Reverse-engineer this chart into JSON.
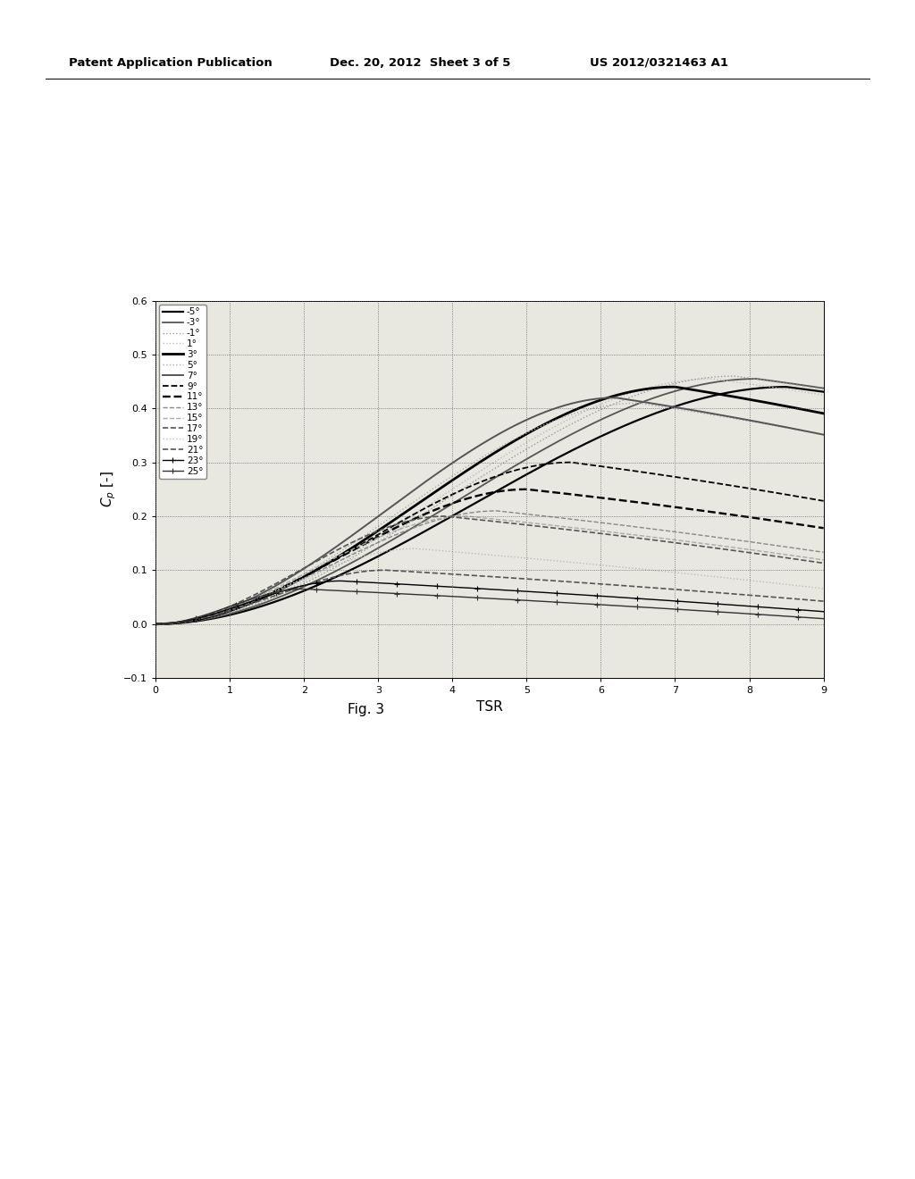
{
  "header_left": "Patent Application Publication",
  "header_mid": "Dec. 20, 2012  Sheet 3 of 5",
  "header_right": "US 2012/0321463 A1",
  "fig_label": "Fig. 3",
  "xlabel": "TSR",
  "ylabel": "C_p [-]",
  "xlim": [
    0,
    9
  ],
  "ylim": [
    -0.1,
    0.6
  ],
  "xticks": [
    0,
    1,
    2,
    3,
    4,
    5,
    6,
    7,
    8,
    9
  ],
  "yticks": [
    -0.1,
    0.0,
    0.1,
    0.2,
    0.3,
    0.4,
    0.5,
    0.6
  ],
  "background_color": "#e8e8e0",
  "curves": [
    {
      "label": "-5°",
      "peak_tsr": 8.5,
      "peak_cp": 0.44,
      "fall_rate": 0.04,
      "color": "#000000",
      "lw": 1.6,
      "ls": "solid",
      "marker": null
    },
    {
      "label": "-3°",
      "peak_tsr": 8.1,
      "peak_cp": 0.455,
      "fall_rate": 0.04,
      "color": "#555555",
      "lw": 1.3,
      "ls": "solid",
      "marker": null
    },
    {
      "label": "-1°",
      "peak_tsr": 7.8,
      "peak_cp": 0.46,
      "fall_rate": 0.04,
      "color": "#999999",
      "lw": 1.0,
      "ls": "dotted",
      "marker": null
    },
    {
      "label": "1°",
      "peak_tsr": 7.5,
      "peak_cp": 0.455,
      "fall_rate": 0.04,
      "color": "#bbbbbb",
      "lw": 1.0,
      "ls": "dotted",
      "marker": null
    },
    {
      "label": "3°",
      "peak_tsr": 7.0,
      "peak_cp": 0.44,
      "fall_rate": 0.05,
      "color": "#000000",
      "lw": 2.0,
      "ls": "solid",
      "marker": null
    },
    {
      "label": "5°",
      "peak_tsr": 6.5,
      "peak_cp": 0.41,
      "fall_rate": 0.05,
      "color": "#aaaaaa",
      "lw": 1.0,
      "ls": "dotted",
      "marker": null
    },
    {
      "label": "7°",
      "peak_tsr": 6.2,
      "peak_cp": 0.42,
      "fall_rate": 0.05,
      "color": "#555555",
      "lw": 1.4,
      "ls": "solid",
      "marker": null
    },
    {
      "label": "9°",
      "peak_tsr": 5.6,
      "peak_cp": 0.3,
      "fall_rate": 0.06,
      "color": "#000000",
      "lw": 1.3,
      "ls": "dashed",
      "marker": null
    },
    {
      "label": "11°",
      "peak_tsr": 5.0,
      "peak_cp": 0.25,
      "fall_rate": 0.06,
      "color": "#000000",
      "lw": 1.7,
      "ls": "dashed",
      "marker": null
    },
    {
      "label": "13°",
      "peak_tsr": 4.6,
      "peak_cp": 0.21,
      "fall_rate": 0.07,
      "color": "#888888",
      "lw": 1.0,
      "ls": "dashed",
      "marker": null
    },
    {
      "label": "15°",
      "peak_tsr": 4.2,
      "peak_cp": 0.2,
      "fall_rate": 0.07,
      "color": "#aaaaaa",
      "lw": 1.0,
      "ls": "dashed",
      "marker": null
    },
    {
      "label": "17°",
      "peak_tsr": 3.9,
      "peak_cp": 0.2,
      "fall_rate": 0.07,
      "color": "#555555",
      "lw": 1.2,
      "ls": "dashed",
      "marker": null
    },
    {
      "label": "19°",
      "peak_tsr": 3.5,
      "peak_cp": 0.14,
      "fall_rate": 0.08,
      "color": "#bbbbbb",
      "lw": 1.0,
      "ls": "dotted",
      "marker": null
    },
    {
      "label": "21°",
      "peak_tsr": 3.1,
      "peak_cp": 0.1,
      "fall_rate": 0.08,
      "color": "#555555",
      "lw": 1.2,
      "ls": "dashed",
      "marker": null
    },
    {
      "label": "23°",
      "peak_tsr": 2.5,
      "peak_cp": 0.08,
      "fall_rate": 0.09,
      "color": "#000000",
      "lw": 1.0,
      "ls": "solid",
      "marker": "+"
    },
    {
      "label": "25°",
      "peak_tsr": 2.0,
      "peak_cp": 0.065,
      "fall_rate": 0.1,
      "color": "#333333",
      "lw": 1.0,
      "ls": "solid",
      "marker": "+"
    }
  ]
}
